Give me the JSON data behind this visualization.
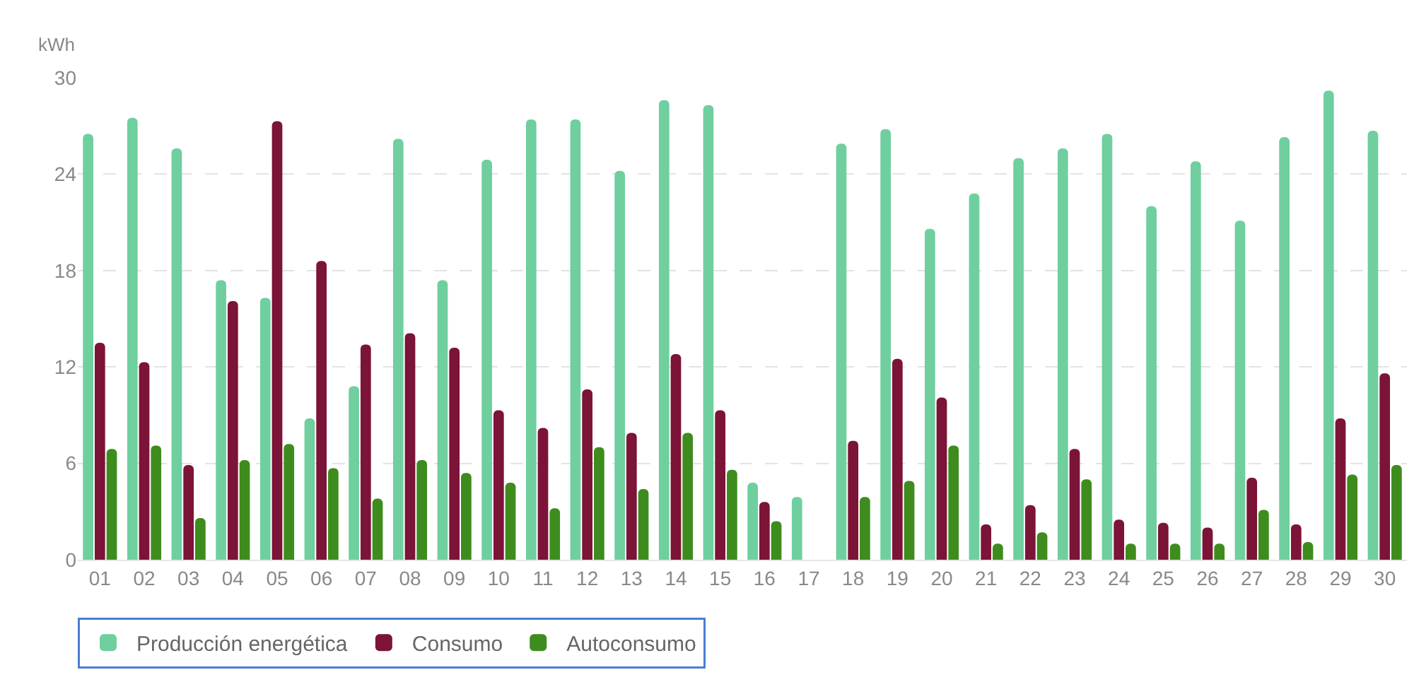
{
  "chart_data": {
    "type": "bar",
    "ylabel": "kWh",
    "categories": [
      "01",
      "02",
      "03",
      "04",
      "05",
      "06",
      "07",
      "08",
      "09",
      "10",
      "11",
      "12",
      "13",
      "14",
      "15",
      "16",
      "17",
      "18",
      "19",
      "20",
      "21",
      "22",
      "23",
      "24",
      "25",
      "26",
      "27",
      "28",
      "29",
      "30"
    ],
    "series": [
      {
        "name": "Producción energética",
        "color": "#6fcf9f",
        "values": [
          26.5,
          27.5,
          25.6,
          17.4,
          16.3,
          8.8,
          10.8,
          26.2,
          17.4,
          24.9,
          27.4,
          27.4,
          24.2,
          28.6,
          28.3,
          4.8,
          3.9,
          25.9,
          26.8,
          20.6,
          22.8,
          25.0,
          25.6,
          26.5,
          22.0,
          24.8,
          21.1,
          26.3,
          29.2,
          26.7
        ]
      },
      {
        "name": "Consumo",
        "color": "#7b1437",
        "values": [
          13.5,
          12.3,
          5.9,
          16.1,
          27.3,
          18.6,
          13.4,
          14.1,
          13.2,
          9.3,
          8.2,
          10.6,
          7.9,
          12.8,
          9.3,
          3.6,
          null,
          7.4,
          12.5,
          10.1,
          2.2,
          3.4,
          6.9,
          2.5,
          2.3,
          2.0,
          5.1,
          2.2,
          8.8,
          11.6
        ]
      },
      {
        "name": "Autoconsumo",
        "color": "#3e8c1e",
        "values": [
          6.9,
          7.1,
          2.6,
          6.2,
          7.2,
          5.7,
          3.8,
          6.2,
          5.4,
          4.8,
          3.2,
          7.0,
          4.4,
          7.9,
          5.6,
          2.4,
          null,
          3.9,
          4.9,
          7.1,
          1.0,
          1.7,
          5.0,
          1.0,
          1.0,
          1.0,
          3.1,
          1.1,
          5.3,
          5.9
        ]
      }
    ],
    "ylim": [
      0,
      30
    ],
    "yticks": [
      0,
      6,
      12,
      18,
      24,
      30
    ],
    "grid": "y",
    "legend": "bottom"
  }
}
